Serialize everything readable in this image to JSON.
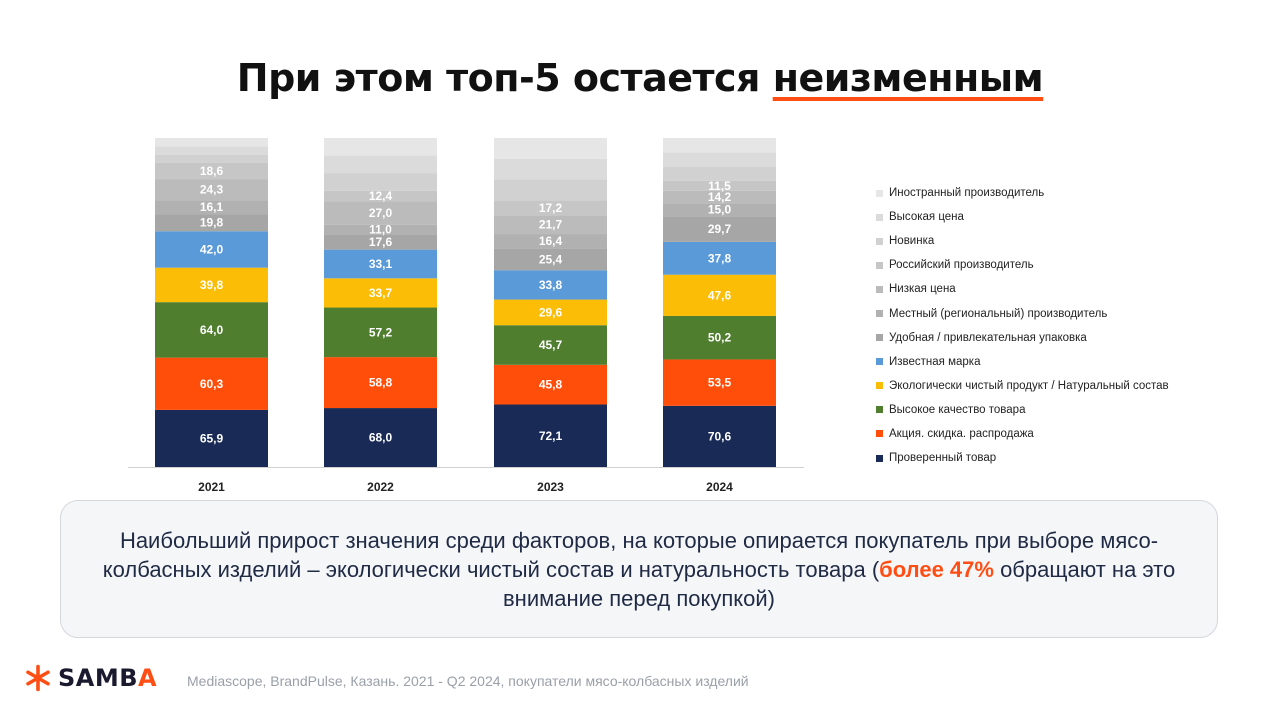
{
  "title": {
    "main": "При этом топ-5 остается ",
    "accent": "неизменным"
  },
  "chart_data": {
    "type": "bar",
    "stacked": true,
    "categories": [
      "2021",
      "2022",
      "2023",
      "2024"
    ],
    "series": [
      {
        "name": "Проверенный товар",
        "color": "#1a2a57",
        "values": [
          65.9,
          68.0,
          72.1,
          70.6
        ]
      },
      {
        "name": "Акция. скидка. распродажа",
        "color": "#ff4e0a",
        "values": [
          60.3,
          58.8,
          45.8,
          53.5
        ]
      },
      {
        "name": "Высокое качество товара",
        "color": "#4f7e2f",
        "values": [
          64.0,
          57.2,
          45.7,
          50.2
        ]
      },
      {
        "name": "Экологически чистый продукт / Натуральный состав",
        "color": "#fbbd05",
        "values": [
          39.8,
          33.7,
          29.6,
          47.6
        ]
      },
      {
        "name": "Известная марка",
        "color": "#5a9ad8",
        "values": [
          42.0,
          33.1,
          33.8,
          37.8
        ]
      },
      {
        "name": "Удобная / привлекательная упаковка",
        "color": "#a6a6a6",
        "values": [
          19.8,
          17.6,
          25.4,
          29.7
        ]
      },
      {
        "name": "Местный (региональный) производитель",
        "color": "#b1b1b1",
        "values": [
          16.1,
          11.0,
          16.4,
          15.0
        ]
      },
      {
        "name": "Низкая цена",
        "color": "#bbbbbb",
        "values": [
          24.3,
          27.0,
          21.7,
          14.2
        ]
      },
      {
        "name": "Российский производитель",
        "color": "#c6c6c6",
        "values": [
          18.6,
          12.4,
          17.2,
          11.5
        ]
      },
      {
        "name": "Новинка",
        "color": "#d1d1d1",
        "values": [
          null,
          null,
          null,
          null
        ]
      },
      {
        "name": "Высокая цена",
        "color": "#dbdbdb",
        "values": [
          null,
          null,
          null,
          null
        ]
      },
      {
        "name": "Иностранный производитель",
        "color": "#e6e6e6",
        "values": [
          null,
          null,
          null,
          null
        ]
      }
    ],
    "data_labels": true,
    "legend_position": "right",
    "grid": false
  },
  "note": {
    "text_before": "Наибольший прирост значения среди факторов, на которые опирается покупатель при выборе мясо-колбасных изделий – экологически чистый состав и натуральность товара (",
    "highlight": "более 47%",
    "text_after": " обращают на это внимание перед покупкой)"
  },
  "brand": {
    "name_main": "SAMB",
    "name_last": "A",
    "logo_color": "#ff4e14"
  },
  "source": "Mediascope, BrandPulse, Казань. 2021 - Q2 2024, покупатели мясо-колбасных изделий"
}
